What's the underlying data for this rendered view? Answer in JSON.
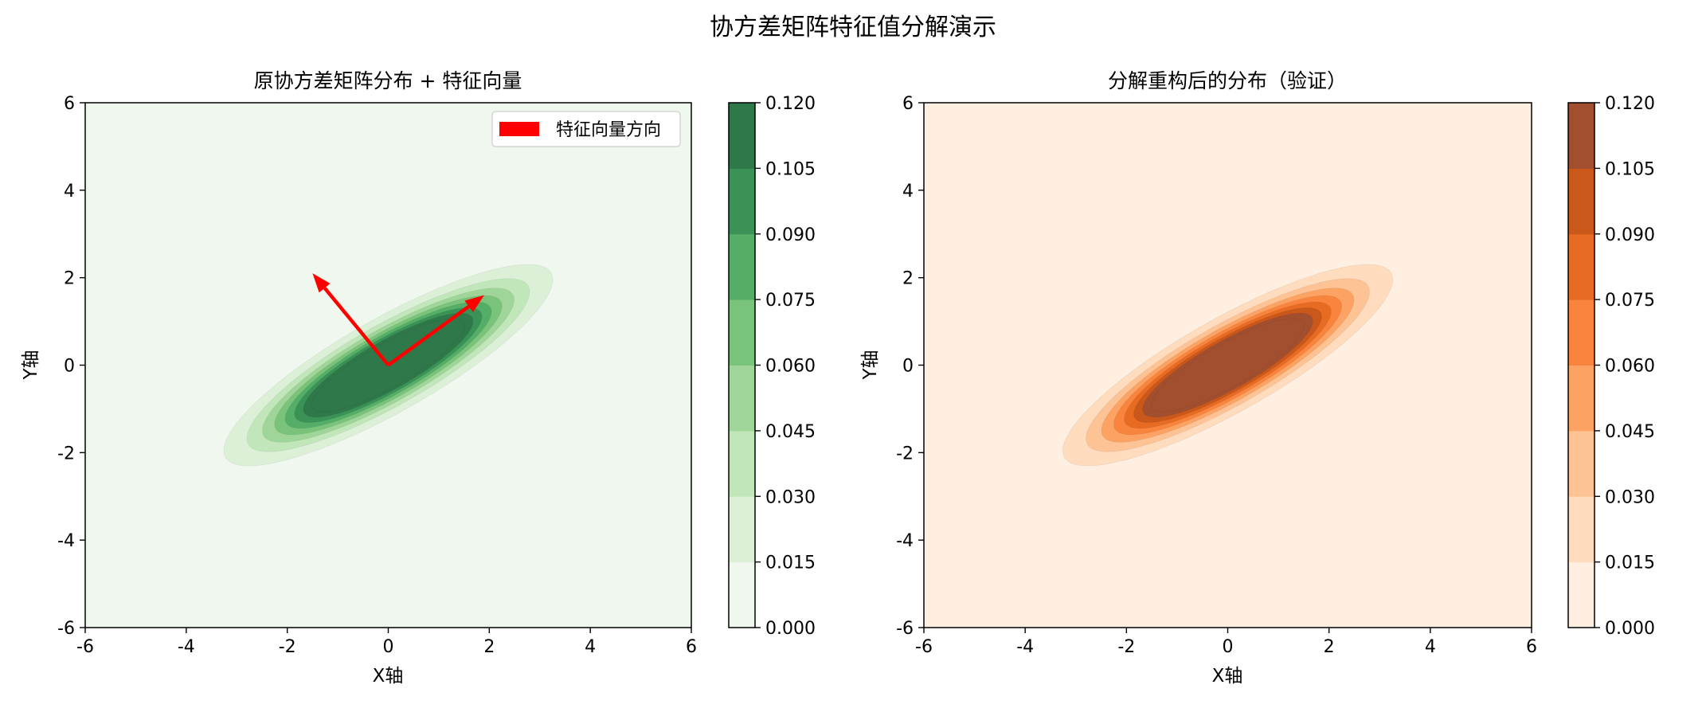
{
  "figure": {
    "suptitle": "协方差矩阵特征值分解演示"
  },
  "chart_data": [
    {
      "type": "contour",
      "title": "原协方差矩阵分布 + 特征向量",
      "xlabel": "X轴",
      "ylabel": "Y轴",
      "xlim": [
        -6,
        6
      ],
      "ylim": [
        -6,
        6
      ],
      "xticks": [
        "-6",
        "-4",
        "-2",
        "0",
        "2",
        "4",
        "6"
      ],
      "yticks": [
        "-6",
        "-4",
        "-2",
        "0",
        "2",
        "4",
        "6"
      ],
      "colormap": "Greens",
      "levels": [
        0.0,
        0.015,
        0.03,
        0.045,
        0.06,
        0.075,
        0.09,
        0.105,
        0.12
      ],
      "colorbar_ticks": [
        "0.000",
        "0.015",
        "0.030",
        "0.045",
        "0.060",
        "0.075",
        "0.090",
        "0.105",
        "0.120"
      ],
      "level_colors": [
        "#f0f7ee",
        "#dcf0d8",
        "#c0e6ba",
        "#9fd599",
        "#7ac37b",
        "#54ae68",
        "#3a9256",
        "#2f7849"
      ],
      "distribution": {
        "mean": [
          0,
          0
        ],
        "cov": [
          [
            2.0,
            1.2
          ],
          [
            1.2,
            1.0
          ]
        ]
      },
      "eigenvectors": [
        {
          "dx": 1.9,
          "dy": 1.6
        },
        {
          "dx": -1.5,
          "dy": 2.1
        }
      ],
      "arrow_color": "#ff0000",
      "legend": {
        "placement": "top-right",
        "entries": [
          "特征向量方向"
        ]
      }
    },
    {
      "type": "contour",
      "title": "分解重构后的分布（验证）",
      "xlabel": "X轴",
      "ylabel": "Y轴",
      "xlim": [
        -6,
        6
      ],
      "ylim": [
        -6,
        6
      ],
      "xticks": [
        "-6",
        "-4",
        "-2",
        "0",
        "2",
        "4",
        "6"
      ],
      "yticks": [
        "-6",
        "-4",
        "-2",
        "0",
        "2",
        "4",
        "6"
      ],
      "colormap": "Oranges",
      "levels": [
        0.0,
        0.015,
        0.03,
        0.045,
        0.06,
        0.075,
        0.09,
        0.105,
        0.12
      ],
      "colorbar_ticks": [
        "0.000",
        "0.015",
        "0.030",
        "0.045",
        "0.060",
        "0.075",
        "0.090",
        "0.105",
        "0.120"
      ],
      "level_colors": [
        "#feefe0",
        "#fedcbd",
        "#fdc395",
        "#fca262",
        "#f8843d",
        "#e76b23",
        "#c9581a",
        "#a24f30"
      ],
      "distribution": {
        "mean": [
          0,
          0
        ],
        "cov": [
          [
            2.0,
            1.2
          ],
          [
            1.2,
            1.0
          ]
        ]
      }
    }
  ]
}
